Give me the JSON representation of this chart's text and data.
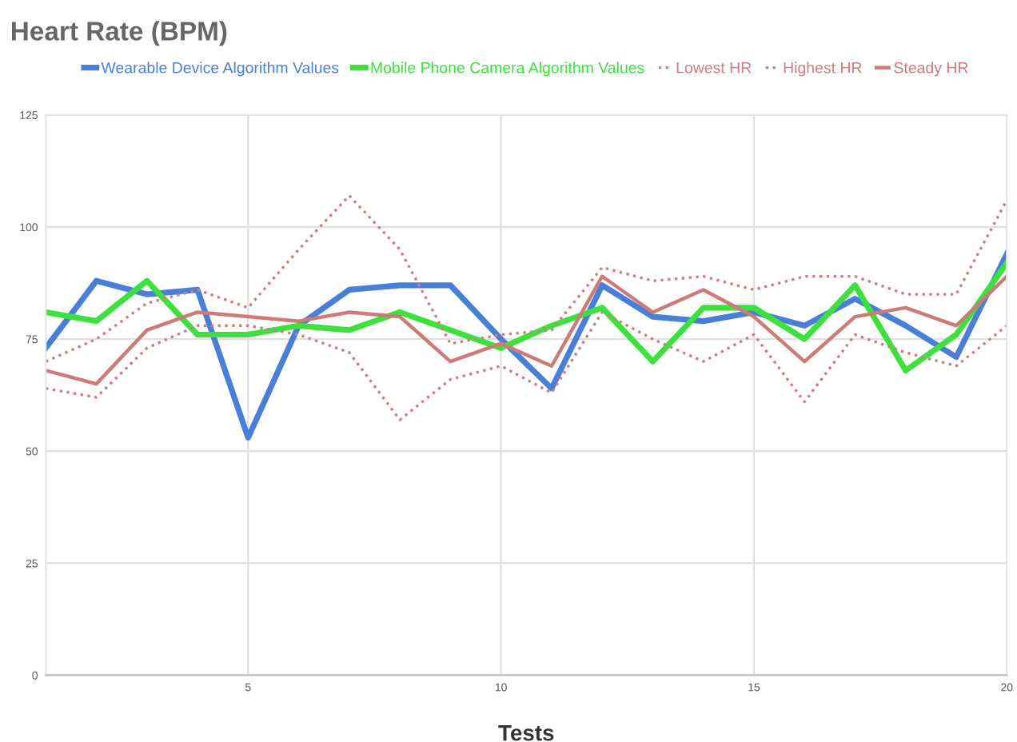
{
  "chart_data": {
    "type": "line",
    "title": "Heart Rate (BPM)",
    "xlabel": "Tests",
    "x": [
      1,
      2,
      3,
      4,
      5,
      6,
      7,
      8,
      9,
      10,
      11,
      12,
      13,
      14,
      15,
      16,
      17,
      18,
      19,
      20
    ],
    "series": [
      {
        "name": "Wearable Device Algorithm Values",
        "color": "#4a7fd8",
        "values": [
          73,
          88,
          85,
          86,
          53,
          78,
          86,
          87,
          87,
          75,
          64,
          87,
          80,
          79,
          81,
          78,
          84,
          78,
          71,
          94
        ]
      },
      {
        "name": "Mobile Phone Camera Algorithm Values",
        "color": "#3ee03e",
        "values": [
          81,
          79,
          88,
          76,
          76,
          78,
          77,
          81,
          77,
          73,
          78,
          82,
          70,
          82,
          82,
          75,
          87,
          68,
          76,
          92
        ]
      },
      {
        "name": "Lowest HR",
        "color": "#c98080",
        "line_style": "dotted",
        "values": [
          64,
          62,
          73,
          78,
          78,
          76,
          72,
          57,
          66,
          69,
          63,
          81,
          75,
          70,
          76,
          61,
          76,
          72,
          69,
          78
        ]
      },
      {
        "name": "Highest HR",
        "color": "#c98080",
        "line_style": "dotted",
        "values": [
          70,
          75,
          83,
          86,
          82,
          95,
          107,
          95,
          74,
          76,
          77,
          91,
          88,
          89,
          86,
          89,
          89,
          85,
          85,
          106
        ]
      },
      {
        "name": "Steady HR",
        "color": "#cc7a7a",
        "values": [
          68,
          65,
          77,
          81,
          80,
          79,
          81,
          80,
          70,
          74,
          69,
          89,
          81,
          86,
          80,
          70,
          80,
          82,
          78,
          89
        ]
      }
    ],
    "xlim": [
      1,
      20
    ],
    "xticks": [
      5,
      10,
      15,
      20
    ],
    "ylim": [
      0,
      125
    ],
    "yticks": [
      0,
      25,
      50,
      75,
      100,
      125
    ],
    "grid": true,
    "legend": "top",
    "line_style": "solid",
    "marker": "none"
  }
}
